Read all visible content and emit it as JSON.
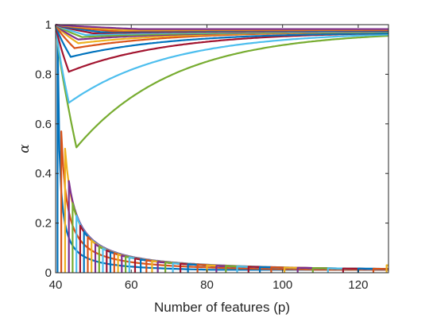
{
  "chart_data": {
    "type": "line",
    "title": "",
    "xlabel": "Number of features (p)",
    "ylabel": "α",
    "xlim": [
      40,
      128
    ],
    "ylim": [
      0,
      1
    ],
    "xticks": [
      "40",
      "60",
      "80",
      "100",
      "120"
    ],
    "yticks": [
      "0",
      "0.2",
      "0.4",
      "0.6",
      "0.8",
      "1"
    ],
    "grid": false,
    "legend": "none",
    "palette": [
      "#0072BD",
      "#D95319",
      "#EDB120",
      "#7E2F8E",
      "#77AC30",
      "#4DBEEE",
      "#A2142F"
    ],
    "upper_family": {
      "description_values": "each curve starts at α=1 at p=40, dips to a minimum, then rises back toward ~0.97 at p=128",
      "curves": [
        {
          "min_x": 45.5,
          "min_y": 0.505,
          "end_y": 0.955
        },
        {
          "min_x": 43.5,
          "min_y": 0.685,
          "end_y": 0.96
        },
        {
          "min_x": 43.5,
          "min_y": 0.81,
          "end_y": 0.965
        },
        {
          "min_x": 44,
          "min_y": 0.87,
          "end_y": 0.965
        },
        {
          "min_x": 45,
          "min_y": 0.905,
          "end_y": 0.97
        },
        {
          "min_x": 46,
          "min_y": 0.925,
          "end_y": 0.97
        },
        {
          "min_x": 46,
          "min_y": 0.94,
          "end_y": 0.97
        },
        {
          "min_x": 47,
          "min_y": 0.95,
          "end_y": 0.97
        },
        {
          "min_x": 48,
          "min_y": 0.958,
          "end_y": 0.972
        },
        {
          "min_x": 50,
          "min_y": 0.965,
          "end_y": 0.974
        },
        {
          "min_x": 52,
          "min_y": 0.97,
          "end_y": 0.976
        },
        {
          "min_x": 55,
          "min_y": 0.974,
          "end_y": 0.978
        },
        {
          "min_x": 58,
          "min_y": 0.978,
          "end_y": 0.98
        },
        {
          "min_x": 62,
          "min_y": 0.982,
          "end_y": 0.982
        }
      ]
    },
    "lower_family": {
      "description_values": "series of curves each rising vertically from α=0 at a starting p, then decaying along the envelope α≈1.2/(p-40)",
      "start_x": [
        40.5,
        41.5,
        42.5,
        43.5,
        44.5,
        45.5,
        46.5,
        47.5,
        48.5,
        49.5,
        50.5,
        51.5,
        52.5,
        53.5,
        54.5,
        55.5,
        56.5,
        57.5,
        58.5,
        59.5,
        61,
        62.5,
        64,
        65.5,
        67,
        69,
        71,
        73,
        75,
        77.5,
        80,
        82.5,
        85,
        88,
        91,
        94,
        97,
        100.5,
        104,
        108,
        112,
        116,
        120,
        124,
        127.5
      ],
      "peak_y_at_start": [
        0.98,
        0.57,
        0.5,
        0.37,
        0.28,
        0.23,
        0.19,
        0.165,
        0.145,
        0.13,
        0.115,
        0.105,
        0.097,
        0.09,
        0.083,
        0.078,
        0.073,
        0.069,
        0.065,
        0.062,
        0.057,
        0.053,
        0.05,
        0.047,
        0.044,
        0.041,
        0.038,
        0.036,
        0.034,
        0.032,
        0.03,
        0.028,
        0.027,
        0.025,
        0.024,
        0.023,
        0.022,
        0.021,
        0.02,
        0.019,
        0.018,
        0.017,
        0.017,
        0.016,
        0.03
      ]
    }
  }
}
